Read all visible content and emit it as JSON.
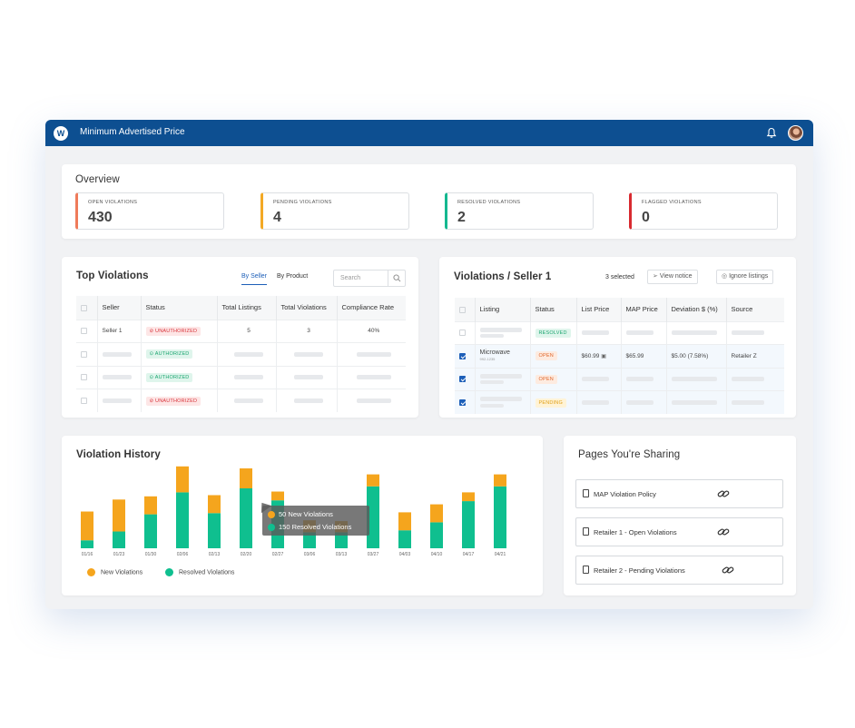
{
  "app": {
    "title": "Minimum Advertised Price",
    "logo_letter": "W",
    "colors": {
      "brand": "#0d4f91"
    }
  },
  "overview": {
    "title": "Overview",
    "stats": [
      {
        "label": "OPEN VIOLATIONS",
        "value": "430",
        "color": "#ef7b5a"
      },
      {
        "label": "PENDING VIOLATIONS",
        "value": "4",
        "color": "#f3a925"
      },
      {
        "label": "RESOLVED VIOLATIONS",
        "value": "2",
        "color": "#14b890"
      },
      {
        "label": "FLAGGED VIOLATIONS",
        "value": "0",
        "color": "#d82a30"
      }
    ]
  },
  "top_violations": {
    "title": "Top Violations",
    "tabs": [
      "By Seller",
      "By Product"
    ],
    "search_placeholder": "Search",
    "columns": [
      "Seller",
      "Status",
      "Total Listings",
      "Total Violations",
      "Compliance Rate"
    ],
    "rows": [
      {
        "seller": "Seller 1",
        "status": "UNAUTHORIZED",
        "total_listings": "5",
        "total_violations": "3",
        "compliance_rate": "40%"
      },
      {
        "status": "AUTHORIZED"
      },
      {
        "status": "AUTHORIZED"
      },
      {
        "status": "UNAUTHORIZED"
      }
    ]
  },
  "seller_violations": {
    "title": "Violations / Seller 1",
    "selected_count": "3 selected",
    "view_notice": "View notice",
    "ignore_listings": "Ignore listings",
    "columns": [
      "Listing",
      "Status",
      "List Price",
      "MAP Price",
      "Deviation $ (%)",
      "Source"
    ],
    "rows": [
      {
        "checked": false,
        "status": "RESOLVED"
      },
      {
        "checked": true,
        "listing": "Microwave",
        "sku": "992-1235",
        "status": "OPEN",
        "list_price": "$60.99",
        "map_price": "$65.99",
        "deviation": "$5.00 (7.58%)",
        "source": "Retailer Z"
      },
      {
        "checked": true,
        "status": "OPEN"
      },
      {
        "checked": true,
        "status": "PENDING"
      }
    ]
  },
  "violation_history": {
    "title": "Violation History",
    "tooltip": {
      "new": "50 New Violations",
      "resolved": "150 Resolved Violations"
    },
    "legend": {
      "new": "New Violations",
      "resolved": "Resolved Violations"
    },
    "colors": {
      "new": "#f5a51d",
      "resolved": "#0fbf8f"
    }
  },
  "chart_data": {
    "type": "bar",
    "stacked": true,
    "title": "Violation History",
    "categories": [
      "01/16",
      "01/23",
      "01/30",
      "02/06",
      "02/13",
      "02/20",
      "02/27",
      "03/06",
      "03/13",
      "03/27",
      "04/03",
      "04/10",
      "04/17",
      "04/21"
    ],
    "series": [
      {
        "name": "Resolved Violations",
        "values": [
          20,
          42,
          85,
          140,
          88,
          150,
          120,
          40,
          40,
          155,
          45,
          65,
          118,
          155
        ]
      },
      {
        "name": "New Violations",
        "values": [
          72,
          80,
          45,
          65,
          45,
          50,
          22,
          30,
          28,
          30,
          45,
          45,
          22,
          30
        ]
      }
    ],
    "ylim": [
      0,
      200
    ],
    "legend_position": "bottom-left"
  },
  "pages_sharing": {
    "title": "Pages You're Sharing",
    "items": [
      "MAP Violation Policy",
      "Retailer 1 - Open Violations",
      "Retailer 2 - Pending Violations"
    ]
  }
}
